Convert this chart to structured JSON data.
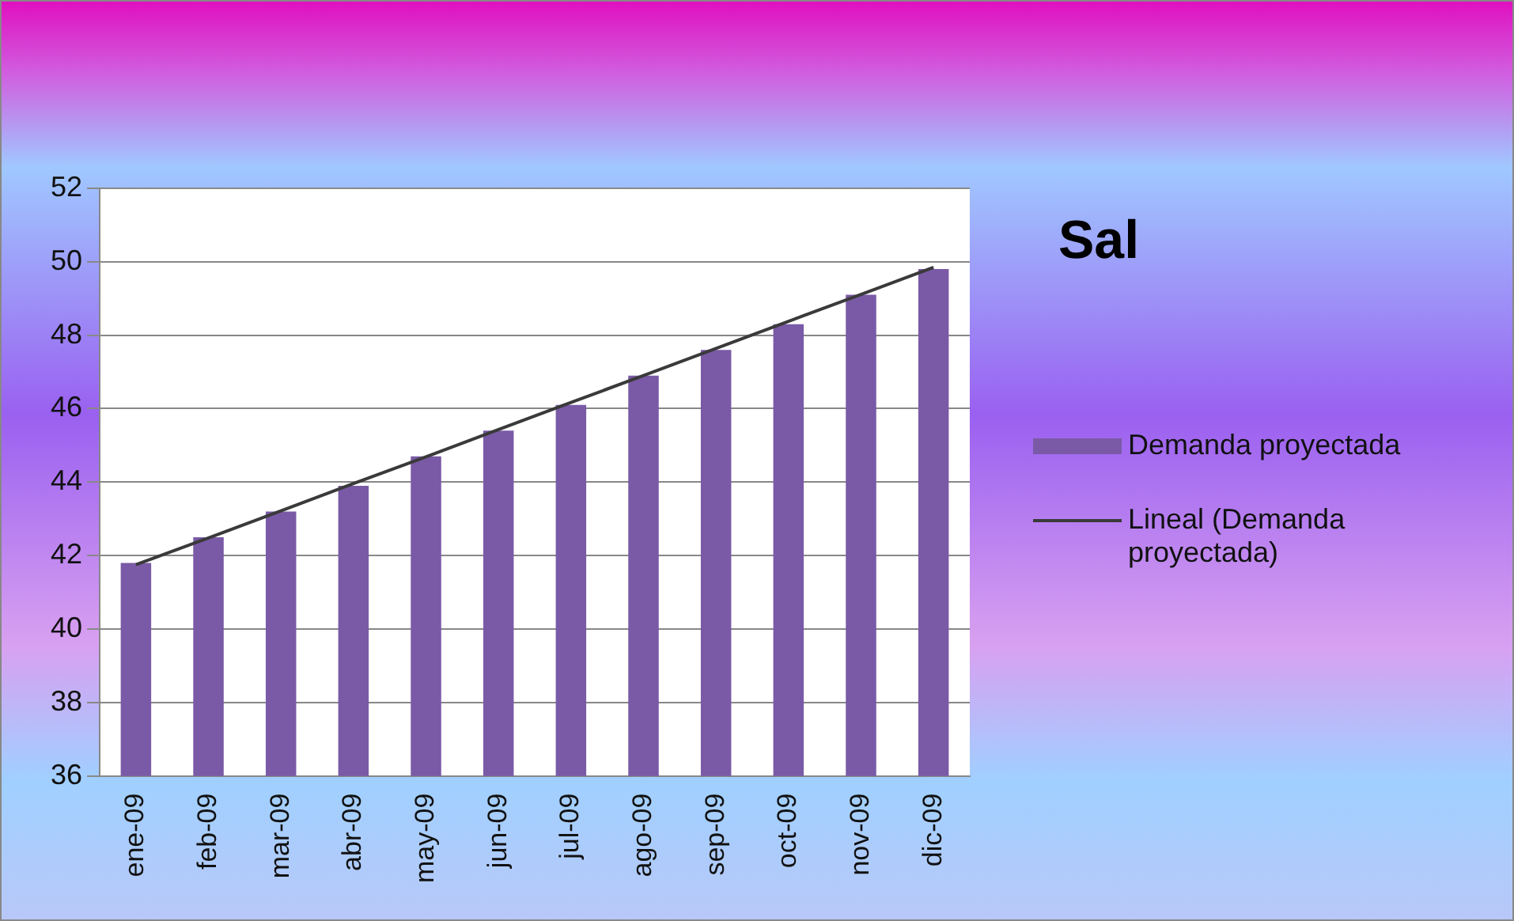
{
  "chart_data": {
    "type": "bar",
    "title": "Sal",
    "categories": [
      "ene-09",
      "feb-09",
      "mar-09",
      "abr-09",
      "may-09",
      "jun-09",
      "jul-09",
      "ago-09",
      "sep-09",
      "oct-09",
      "nov-09",
      "dic-09"
    ],
    "series": [
      {
        "name": "Demanda proyectada",
        "color": "#7a5aa6",
        "values": [
          41.8,
          42.5,
          43.2,
          43.9,
          44.7,
          45.4,
          46.1,
          46.9,
          47.6,
          48.3,
          49.1,
          49.8
        ]
      },
      {
        "name": "Lineal (Demanda proyectada)",
        "type": "line",
        "color": "#3a3a3a",
        "values": [
          41.75,
          42.48,
          43.22,
          43.96,
          44.69,
          45.43,
          46.17,
          46.9,
          47.64,
          48.38,
          49.11,
          49.85
        ]
      }
    ],
    "ylim": [
      36,
      52
    ],
    "yticks": [
      36,
      38,
      40,
      42,
      44,
      46,
      48,
      50,
      52
    ],
    "grid": "y",
    "legend": "right",
    "marker": "none"
  }
}
